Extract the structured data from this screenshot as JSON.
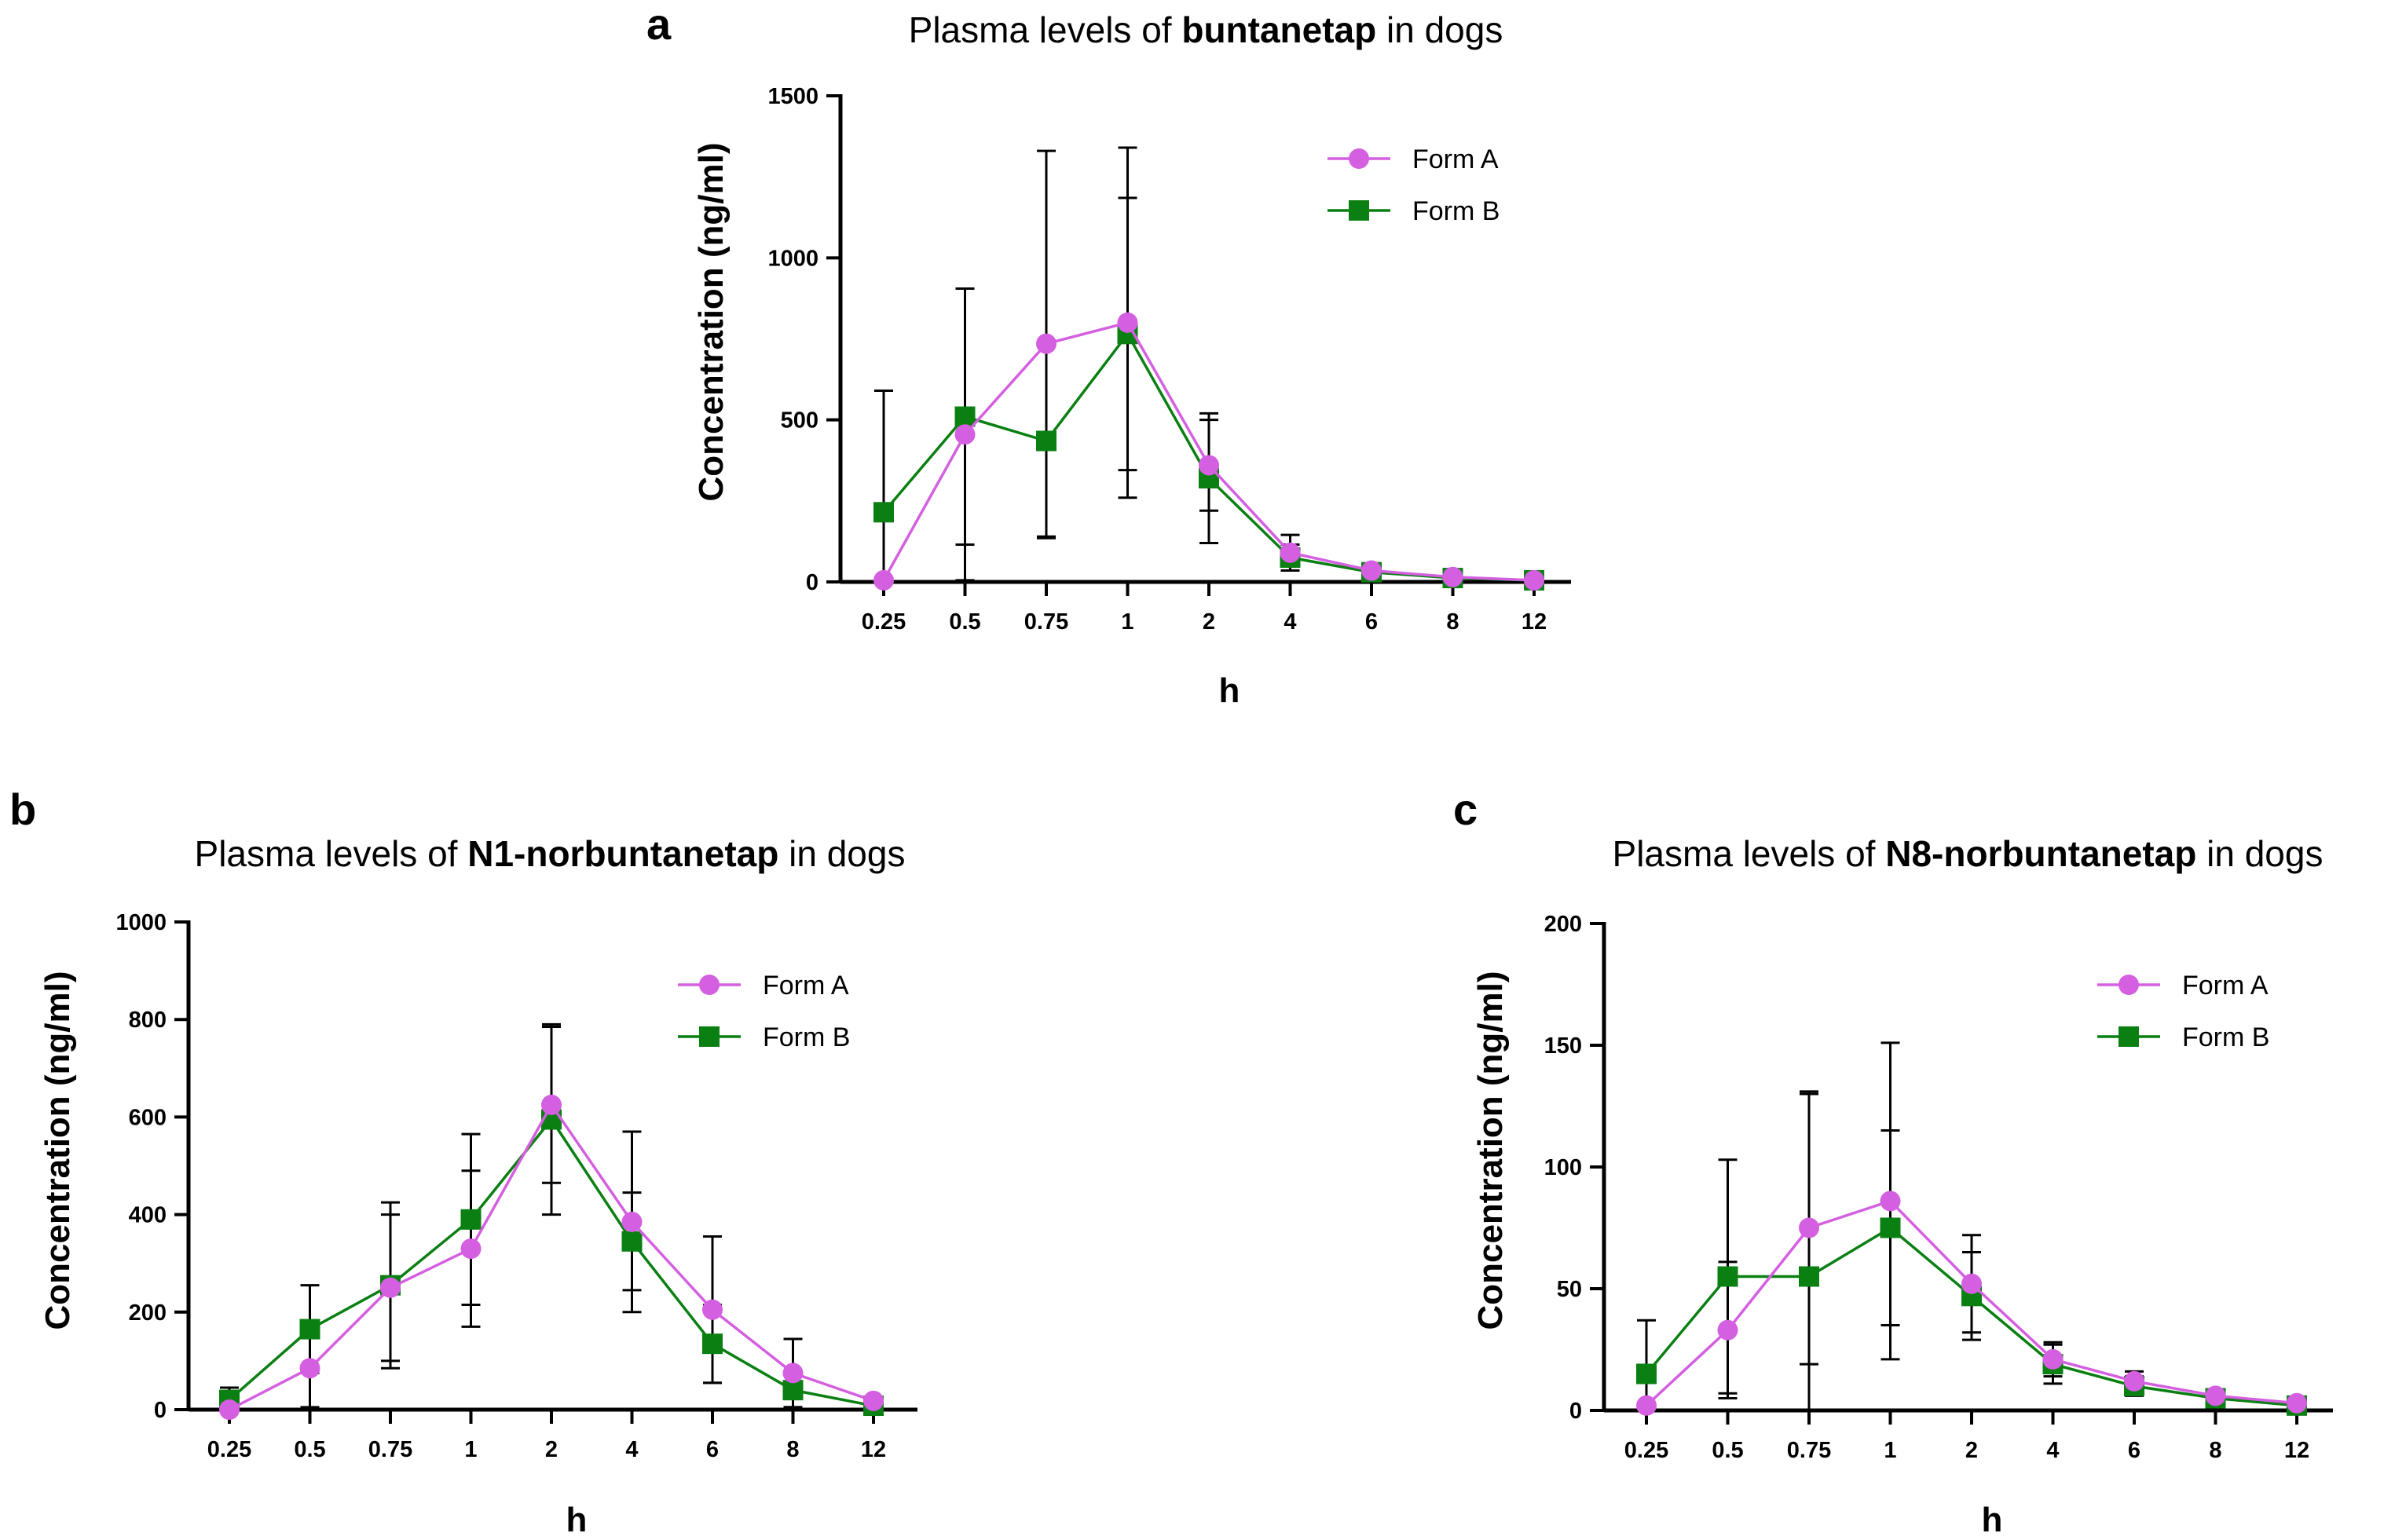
{
  "chart_data": [
    {
      "type": "line",
      "panel_label": "a",
      "title": {
        "prefix": "Plasma levels of ",
        "drug": "buntanetap",
        "suffix": " in dogs"
      },
      "xlabel": "h",
      "ylabel": "Concentration (ng/ml)",
      "categories": [
        "0.25",
        "0.5",
        "0.75",
        "1",
        "2",
        "4",
        "6",
        "8",
        "12"
      ],
      "ylim": [
        0,
        1500
      ],
      "yticks": [
        "0",
        "500",
        "1000",
        "1500"
      ],
      "legend_position": "top-right",
      "series": [
        {
          "name": "Form A",
          "color": "#D45FE0",
          "marker": "circle",
          "values": [
            5,
            455,
            735,
            800,
            360,
            90,
            35,
            15,
            5
          ],
          "errors": [
            0,
            450,
            595,
            540,
            140,
            55,
            10,
            5,
            3
          ]
        },
        {
          "name": "Form B",
          "color": "#0A7F12",
          "marker": "square",
          "values": [
            215,
            510,
            435,
            765,
            320,
            75,
            30,
            12,
            5
          ],
          "errors": [
            375,
            395,
            300,
            420,
            200,
            40,
            10,
            5,
            3
          ]
        }
      ]
    },
    {
      "type": "line",
      "panel_label": "b",
      "title": {
        "prefix": "Plasma levels of ",
        "drug": "N1-norbuntanetap",
        "suffix": " in dogs"
      },
      "xlabel": "h",
      "ylabel": "Concentration (ng/ml)",
      "categories": [
        "0.25",
        "0.5",
        "0.75",
        "1",
        "2",
        "4",
        "6",
        "8",
        "12"
      ],
      "ylim": [
        0,
        1000
      ],
      "yticks": [
        "0",
        "200",
        "400",
        "600",
        "800",
        "1000"
      ],
      "legend_position": "top-right",
      "series": [
        {
          "name": "Form A",
          "color": "#D45FE0",
          "marker": "circle",
          "values": [
            0,
            85,
            250,
            330,
            625,
            385,
            205,
            75,
            18
          ],
          "errors": [
            0,
            80,
            150,
            160,
            160,
            185,
            150,
            70,
            5
          ]
        },
        {
          "name": "Form B",
          "color": "#0A7F12",
          "marker": "square",
          "values": [
            20,
            165,
            255,
            390,
            595,
            345,
            135,
            40,
            8
          ],
          "errors": [
            25,
            90,
            170,
            175,
            195,
            100,
            80,
            35,
            5
          ]
        }
      ]
    },
    {
      "type": "line",
      "panel_label": "c",
      "title": {
        "prefix": "Plasma levels of ",
        "drug": "N8-norbuntanetap",
        "suffix": " in dogs"
      },
      "xlabel": "h",
      "ylabel": "Concentration (ng/ml)",
      "categories": [
        "0.25",
        "0.5",
        "0.75",
        "1",
        "2",
        "4",
        "6",
        "8",
        "12"
      ],
      "ylim": [
        0,
        200
      ],
      "yticks": [
        "0",
        "50",
        "100",
        "150",
        "200"
      ],
      "legend_position": "top-right",
      "series": [
        {
          "name": "Form A",
          "color": "#D45FE0",
          "marker": "circle",
          "values": [
            2,
            33,
            75,
            86,
            52,
            21,
            12,
            6,
            3
          ],
          "errors": [
            0,
            28,
            56,
            65,
            20,
            7,
            4,
            2,
            1
          ]
        },
        {
          "name": "Form B",
          "color": "#0A7F12",
          "marker": "square",
          "values": [
            15,
            55,
            55,
            75,
            47,
            19,
            10,
            5,
            2
          ],
          "errors": [
            22,
            48,
            75,
            40,
            18,
            8,
            4,
            2,
            1
          ]
        }
      ]
    }
  ]
}
